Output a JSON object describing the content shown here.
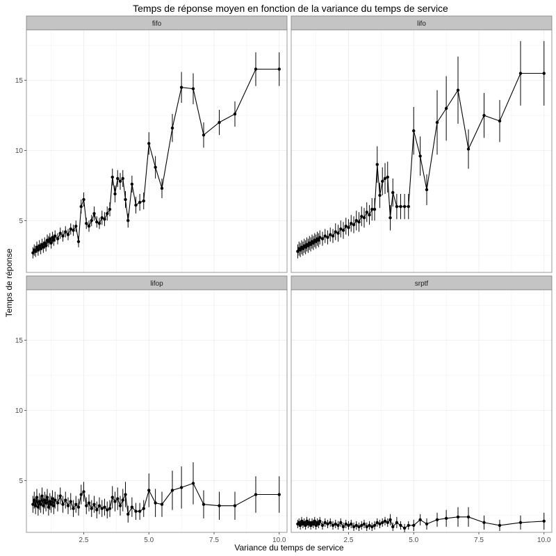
{
  "chart_data": {
    "type": "line",
    "title": "Temps de réponse moyen en fonction de la variance du temps de service",
    "xlabel": "Variance du temps de service",
    "ylabel": "Temps de réponse",
    "xlim": [
      0.3,
      10.3
    ],
    "ylim": [
      1.3,
      18.6
    ],
    "x_ticks": [
      2.5,
      5.0,
      7.5,
      10.0
    ],
    "x_tick_labels": [
      "2.5",
      "5.0",
      "7.5",
      "10.0"
    ],
    "y_ticks": [
      5,
      10,
      15
    ],
    "y_tick_labels": [
      "5",
      "10",
      "15"
    ],
    "grid": true,
    "facets_layout": "2x2",
    "colors": {
      "panel_border": "#7f7f7f",
      "strip_fill": "#c4c4c4",
      "grid": "#ebebeb",
      "series": "#000000"
    },
    "facets": [
      {
        "label": "fifo",
        "x": [
          0.55,
          0.6,
          0.65,
          0.7,
          0.75,
          0.8,
          0.85,
          0.9,
          0.95,
          1.0,
          1.05,
          1.1,
          1.15,
          1.2,
          1.25,
          1.3,
          1.35,
          1.4,
          1.5,
          1.6,
          1.7,
          1.8,
          1.9,
          2.0,
          2.1,
          2.2,
          2.3,
          2.4,
          2.5,
          2.6,
          2.7,
          2.8,
          2.9,
          3.0,
          3.1,
          3.2,
          3.3,
          3.4,
          3.5,
          3.6,
          3.7,
          3.8,
          3.9,
          4.0,
          4.1,
          4.2,
          4.35,
          4.5,
          4.65,
          4.8,
          5.0,
          5.25,
          5.5,
          5.9,
          6.25,
          6.7,
          7.1,
          7.7,
          8.3,
          9.1,
          10.0
        ],
        "y": [
          2.7,
          2.9,
          2.8,
          3.1,
          2.9,
          3.2,
          3.0,
          3.3,
          3.1,
          3.4,
          3.2,
          3.6,
          3.5,
          3.7,
          3.4,
          3.8,
          3.6,
          3.9,
          3.7,
          4.1,
          3.9,
          4.2,
          4.0,
          4.4,
          4.3,
          4.6,
          3.5,
          6.0,
          6.5,
          4.8,
          4.6,
          5.0,
          5.5,
          4.9,
          4.8,
          5.2,
          5.1,
          5.5,
          5.8,
          8.1,
          6.9,
          8.0,
          7.8,
          8.0,
          6.5,
          5.0,
          7.6,
          6.1,
          6.3,
          6.4,
          10.5,
          8.8,
          7.3,
          11.6,
          14.5,
          14.4,
          11.1,
          12.0,
          12.6,
          15.8,
          15.8
        ],
        "err": [
          0.4,
          0.4,
          0.4,
          0.4,
          0.4,
          0.4,
          0.4,
          0.4,
          0.4,
          0.4,
          0.4,
          0.4,
          0.4,
          0.4,
          0.4,
          0.4,
          0.4,
          0.4,
          0.4,
          0.4,
          0.4,
          0.4,
          0.4,
          0.4,
          0.4,
          0.4,
          0.4,
          0.5,
          0.5,
          0.4,
          0.4,
          0.4,
          0.5,
          0.4,
          0.4,
          0.5,
          0.5,
          0.5,
          0.5,
          0.6,
          0.6,
          0.6,
          0.6,
          0.6,
          0.6,
          0.5,
          0.6,
          0.6,
          0.6,
          0.6,
          0.8,
          0.8,
          0.7,
          1.0,
          1.1,
          1.1,
          0.9,
          0.9,
          0.9,
          1.2,
          1.2
        ]
      },
      {
        "label": "lifo",
        "x": [
          0.55,
          0.6,
          0.65,
          0.7,
          0.75,
          0.8,
          0.85,
          0.9,
          0.95,
          1.0,
          1.05,
          1.1,
          1.15,
          1.2,
          1.25,
          1.3,
          1.35,
          1.4,
          1.5,
          1.6,
          1.7,
          1.8,
          1.9,
          2.0,
          2.1,
          2.2,
          2.3,
          2.4,
          2.5,
          2.6,
          2.7,
          2.8,
          2.9,
          3.0,
          3.1,
          3.2,
          3.3,
          3.4,
          3.5,
          3.6,
          3.7,
          3.8,
          3.9,
          4.0,
          4.1,
          4.2,
          4.35,
          4.5,
          4.65,
          4.8,
          5.0,
          5.25,
          5.5,
          5.9,
          6.25,
          6.7,
          7.1,
          7.7,
          8.3,
          9.1,
          10.0
        ],
        "y": [
          2.8,
          3.0,
          2.9,
          3.1,
          3.0,
          3.2,
          3.1,
          3.3,
          3.2,
          3.4,
          3.3,
          3.5,
          3.4,
          3.6,
          3.5,
          3.7,
          3.6,
          3.8,
          3.7,
          3.9,
          3.8,
          4.0,
          3.9,
          4.2,
          4.1,
          4.4,
          4.3,
          4.6,
          4.5,
          4.8,
          4.7,
          5.0,
          4.9,
          5.3,
          5.2,
          5.6,
          5.4,
          5.8,
          5.8,
          9.0,
          6.8,
          7.8,
          8.0,
          8.1,
          5.2,
          7.0,
          6.0,
          6.0,
          6.0,
          6.0,
          11.4,
          9.6,
          7.2,
          12.0,
          13.0,
          14.3,
          10.1,
          12.5,
          12.1,
          15.5,
          15.5
        ],
        "err": [
          0.5,
          0.5,
          0.5,
          0.5,
          0.5,
          0.5,
          0.5,
          0.5,
          0.5,
          0.5,
          0.5,
          0.5,
          0.5,
          0.5,
          0.5,
          0.5,
          0.5,
          0.5,
          0.5,
          0.5,
          0.5,
          0.5,
          0.5,
          0.6,
          0.6,
          0.6,
          0.6,
          0.6,
          0.6,
          0.6,
          0.6,
          0.7,
          0.7,
          0.7,
          0.7,
          0.7,
          0.7,
          0.8,
          0.8,
          1.3,
          0.9,
          1.0,
          1.1,
          1.1,
          0.9,
          1.0,
          0.9,
          0.9,
          0.9,
          0.9,
          1.7,
          1.4,
          1.1,
          2.3,
          2.3,
          2.4,
          1.4,
          1.6,
          1.5,
          2.3,
          2.3
        ]
      },
      {
        "label": "lifop",
        "x": [
          0.55,
          0.6,
          0.65,
          0.7,
          0.75,
          0.8,
          0.85,
          0.9,
          0.95,
          1.0,
          1.05,
          1.1,
          1.15,
          1.2,
          1.25,
          1.3,
          1.35,
          1.4,
          1.5,
          1.6,
          1.7,
          1.8,
          1.9,
          2.0,
          2.1,
          2.2,
          2.3,
          2.4,
          2.5,
          2.6,
          2.7,
          2.8,
          2.9,
          3.0,
          3.1,
          3.2,
          3.3,
          3.4,
          3.5,
          3.6,
          3.7,
          3.8,
          3.9,
          4.0,
          4.1,
          4.2,
          4.35,
          4.5,
          4.65,
          4.8,
          5.0,
          5.25,
          5.5,
          5.9,
          6.25,
          6.7,
          7.1,
          7.7,
          8.3,
          9.1,
          10.0
        ],
        "y": [
          3.3,
          3.6,
          3.2,
          3.8,
          3.1,
          3.5,
          3.3,
          3.9,
          3.2,
          3.6,
          3.4,
          3.8,
          3.1,
          3.5,
          3.3,
          3.7,
          3.2,
          3.6,
          3.4,
          3.9,
          3.3,
          3.6,
          3.2,
          3.5,
          3.0,
          3.3,
          3.1,
          4.0,
          4.2,
          3.2,
          3.4,
          3.0,
          3.3,
          2.9,
          3.2,
          3.0,
          3.1,
          2.9,
          3.0,
          3.8,
          3.5,
          3.7,
          3.2,
          3.6,
          4.0,
          2.6,
          3.1,
          2.8,
          2.8,
          3.0,
          4.3,
          3.4,
          3.3,
          4.3,
          4.5,
          4.8,
          3.3,
          3.2,
          3.2,
          4.0,
          4.0
        ],
        "err": [
          0.6,
          0.6,
          0.6,
          0.6,
          0.6,
          0.6,
          0.6,
          0.6,
          0.6,
          0.6,
          0.6,
          0.6,
          0.6,
          0.6,
          0.6,
          0.6,
          0.6,
          0.6,
          0.6,
          0.6,
          0.6,
          0.6,
          0.6,
          0.6,
          0.6,
          0.6,
          0.6,
          0.7,
          0.7,
          0.6,
          0.6,
          0.6,
          0.6,
          0.6,
          0.6,
          0.6,
          0.6,
          0.6,
          0.6,
          0.8,
          0.7,
          0.8,
          0.7,
          0.8,
          0.9,
          0.6,
          0.7,
          0.6,
          0.6,
          0.6,
          1.2,
          1.0,
          0.9,
          1.4,
          1.5,
          1.5,
          1.0,
          1.0,
          1.0,
          1.3,
          1.3
        ]
      },
      {
        "label": "srptf",
        "x": [
          0.55,
          0.6,
          0.65,
          0.7,
          0.75,
          0.8,
          0.85,
          0.9,
          0.95,
          1.0,
          1.05,
          1.1,
          1.15,
          1.2,
          1.25,
          1.3,
          1.35,
          1.4,
          1.5,
          1.6,
          1.7,
          1.8,
          1.9,
          2.0,
          2.1,
          2.2,
          2.3,
          2.4,
          2.5,
          2.6,
          2.7,
          2.8,
          2.9,
          3.0,
          3.1,
          3.2,
          3.3,
          3.4,
          3.5,
          3.6,
          3.7,
          3.8,
          3.9,
          4.0,
          4.1,
          4.2,
          4.35,
          4.5,
          4.65,
          4.8,
          5.0,
          5.25,
          5.5,
          5.9,
          6.25,
          6.7,
          7.1,
          7.7,
          8.3,
          9.1,
          10.0
        ],
        "y": [
          1.9,
          2.0,
          1.8,
          2.1,
          1.9,
          2.0,
          1.8,
          2.1,
          1.9,
          2.0,
          1.8,
          2.0,
          1.9,
          2.1,
          1.8,
          2.0,
          1.9,
          2.1,
          1.8,
          2.0,
          1.9,
          2.0,
          1.8,
          1.9,
          1.8,
          2.0,
          1.7,
          1.9,
          1.8,
          1.9,
          1.7,
          1.8,
          1.7,
          1.8,
          1.9,
          1.7,
          1.8,
          1.7,
          1.8,
          2.0,
          1.9,
          2.0,
          2.1,
          2.0,
          2.2,
          1.7,
          2.0,
          1.8,
          1.6,
          1.8,
          1.8,
          2.2,
          1.9,
          2.2,
          2.3,
          2.4,
          2.4,
          2.0,
          1.8,
          2.0,
          2.1
        ],
        "err": [
          0.3,
          0.3,
          0.3,
          0.3,
          0.3,
          0.3,
          0.3,
          0.3,
          0.3,
          0.3,
          0.3,
          0.3,
          0.3,
          0.3,
          0.3,
          0.3,
          0.3,
          0.3,
          0.3,
          0.3,
          0.3,
          0.3,
          0.3,
          0.3,
          0.3,
          0.3,
          0.3,
          0.3,
          0.3,
          0.3,
          0.3,
          0.3,
          0.3,
          0.3,
          0.3,
          0.3,
          0.3,
          0.3,
          0.3,
          0.3,
          0.3,
          0.3,
          0.3,
          0.3,
          0.4,
          0.3,
          0.4,
          0.3,
          0.3,
          0.3,
          0.4,
          0.4,
          0.4,
          0.5,
          0.6,
          0.7,
          0.7,
          0.5,
          0.4,
          0.5,
          0.6
        ]
      }
    ]
  }
}
